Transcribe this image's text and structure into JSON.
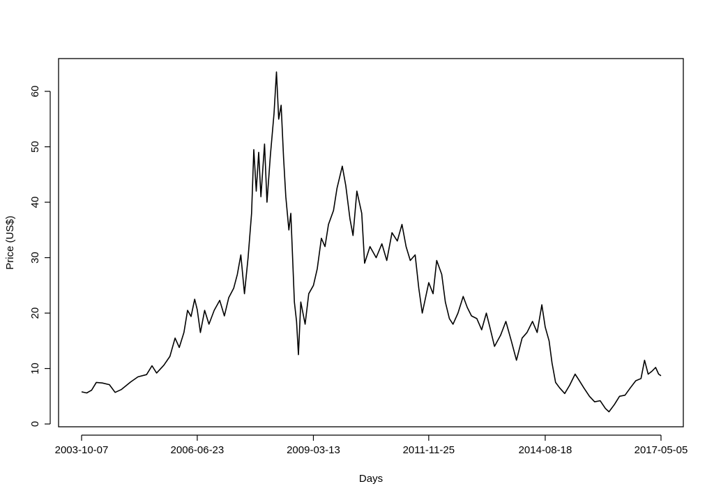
{
  "chart_data": {
    "type": "line",
    "title": "",
    "xlabel": "Days",
    "ylabel": "Price (US$)",
    "x_ticks": [
      "2003-10-07",
      "2006-06-23",
      "2009-03-13",
      "2011-11-25",
      "2014-08-18",
      "2017-05-05"
    ],
    "y_ticks": [
      0,
      10,
      20,
      30,
      40,
      50,
      60
    ],
    "xlim": [
      "2003-10-07",
      "2017-05-05"
    ],
    "ylim": [
      0,
      65
    ],
    "grid": false,
    "legend": "none",
    "line_color": "#000000",
    "series": [
      {
        "points": [
          [
            "2003-10-07",
            5.8
          ],
          [
            "2003-11-20",
            5.6
          ],
          [
            "2004-01-01",
            6.1
          ],
          [
            "2004-02-10",
            7.5
          ],
          [
            "2004-04-01",
            7.4
          ],
          [
            "2004-06-01",
            7.1
          ],
          [
            "2004-07-20",
            5.7
          ],
          [
            "2004-09-10",
            6.2
          ],
          [
            "2004-12-01",
            7.6
          ],
          [
            "2005-02-01",
            8.5
          ],
          [
            "2005-04-15",
            8.9
          ],
          [
            "2005-06-01",
            10.5
          ],
          [
            "2005-07-10",
            9.2
          ],
          [
            "2005-09-10",
            10.6
          ],
          [
            "2005-11-01",
            12.2
          ],
          [
            "2005-12-15",
            15.5
          ],
          [
            "2006-01-20",
            13.8
          ],
          [
            "2006-03-01",
            16.5
          ],
          [
            "2006-04-01",
            20.5
          ],
          [
            "2006-05-01",
            19.4
          ],
          [
            "2006-06-01",
            22.5
          ],
          [
            "2006-06-23",
            20.6
          ],
          [
            "2006-07-20",
            16.5
          ],
          [
            "2006-08-25",
            20.5
          ],
          [
            "2006-10-01",
            18.0
          ],
          [
            "2006-11-15",
            20.5
          ],
          [
            "2007-01-01",
            22.3
          ],
          [
            "2007-02-10",
            19.5
          ],
          [
            "2007-03-20",
            22.8
          ],
          [
            "2007-05-01",
            24.5
          ],
          [
            "2007-06-01",
            27.0
          ],
          [
            "2007-07-01",
            30.5
          ],
          [
            "2007-08-01",
            23.5
          ],
          [
            "2007-09-01",
            30.0
          ],
          [
            "2007-10-01",
            38.0
          ],
          [
            "2007-10-20",
            49.5
          ],
          [
            "2007-11-10",
            42.0
          ],
          [
            "2007-12-01",
            49.0
          ],
          [
            "2007-12-20",
            41.0
          ],
          [
            "2008-01-20",
            50.5
          ],
          [
            "2008-02-10",
            40.0
          ],
          [
            "2008-03-10",
            48.5
          ],
          [
            "2008-04-10",
            56.0
          ],
          [
            "2008-05-01",
            63.5
          ],
          [
            "2008-05-20",
            55.0
          ],
          [
            "2008-06-10",
            57.5
          ],
          [
            "2008-07-01",
            48.0
          ],
          [
            "2008-07-20",
            41.0
          ],
          [
            "2008-08-15",
            35.0
          ],
          [
            "2008-09-01",
            38.0
          ],
          [
            "2008-10-01",
            22.0
          ],
          [
            "2008-10-20",
            18.5
          ],
          [
            "2008-11-05",
            12.5
          ],
          [
            "2008-11-25",
            22.0
          ],
          [
            "2009-01-01",
            18.0
          ],
          [
            "2009-02-01",
            23.5
          ],
          [
            "2009-03-13",
            25.0
          ],
          [
            "2009-04-15",
            28.0
          ],
          [
            "2009-05-20",
            33.5
          ],
          [
            "2009-06-20",
            32.0
          ],
          [
            "2009-07-20",
            36.0
          ],
          [
            "2009-09-01",
            38.5
          ],
          [
            "2009-10-01",
            42.5
          ],
          [
            "2009-11-15",
            46.5
          ],
          [
            "2009-12-15",
            43.0
          ],
          [
            "2010-01-20",
            37.0
          ],
          [
            "2010-02-15",
            34.0
          ],
          [
            "2010-03-20",
            42.0
          ],
          [
            "2010-05-01",
            38.0
          ],
          [
            "2010-05-25",
            29.0
          ],
          [
            "2010-07-10",
            32.0
          ],
          [
            "2010-09-01",
            30.0
          ],
          [
            "2010-10-20",
            32.5
          ],
          [
            "2010-12-01",
            29.5
          ],
          [
            "2011-01-15",
            34.5
          ],
          [
            "2011-03-01",
            33.0
          ],
          [
            "2011-04-10",
            36.0
          ],
          [
            "2011-05-15",
            32.0
          ],
          [
            "2011-06-20",
            29.5
          ],
          [
            "2011-08-01",
            30.5
          ],
          [
            "2011-09-01",
            24.5
          ],
          [
            "2011-10-01",
            20.0
          ],
          [
            "2011-11-25",
            25.5
          ],
          [
            "2012-01-01",
            23.5
          ],
          [
            "2012-02-01",
            29.5
          ],
          [
            "2012-03-15",
            27.0
          ],
          [
            "2012-04-15",
            22.0
          ],
          [
            "2012-05-20",
            19.0
          ],
          [
            "2012-06-20",
            18.0
          ],
          [
            "2012-08-01",
            20.0
          ],
          [
            "2012-09-15",
            23.0
          ],
          [
            "2012-10-20",
            21.0
          ],
          [
            "2012-11-25",
            19.5
          ],
          [
            "2013-01-10",
            19.0
          ],
          [
            "2013-02-20",
            17.0
          ],
          [
            "2013-04-01",
            20.0
          ],
          [
            "2013-05-01",
            17.5
          ],
          [
            "2013-06-10",
            14.0
          ],
          [
            "2013-08-01",
            16.0
          ],
          [
            "2013-09-15",
            18.5
          ],
          [
            "2013-11-01",
            15.0
          ],
          [
            "2013-12-15",
            11.5
          ],
          [
            "2014-02-01",
            15.5
          ],
          [
            "2014-03-15",
            16.5
          ],
          [
            "2014-05-01",
            18.5
          ],
          [
            "2014-06-10",
            16.5
          ],
          [
            "2014-07-20",
            21.5
          ],
          [
            "2014-08-18",
            17.5
          ],
          [
            "2014-09-20",
            15.0
          ],
          [
            "2014-10-15",
            11.0
          ],
          [
            "2014-11-15",
            7.5
          ],
          [
            "2014-12-20",
            6.5
          ],
          [
            "2015-02-01",
            5.5
          ],
          [
            "2015-03-15",
            7.0
          ],
          [
            "2015-05-01",
            9.0
          ],
          [
            "2015-06-01",
            8.0
          ],
          [
            "2015-07-15",
            6.5
          ],
          [
            "2015-09-01",
            5.0
          ],
          [
            "2015-10-15",
            4.0
          ],
          [
            "2015-12-01",
            4.2
          ],
          [
            "2016-01-15",
            2.8
          ],
          [
            "2016-02-15",
            2.2
          ],
          [
            "2016-04-01",
            3.5
          ],
          [
            "2016-05-15",
            5.0
          ],
          [
            "2016-07-01",
            5.2
          ],
          [
            "2016-08-15",
            6.5
          ],
          [
            "2016-10-01",
            7.8
          ],
          [
            "2016-11-15",
            8.2
          ],
          [
            "2016-12-15",
            11.5
          ],
          [
            "2017-01-15",
            9.0
          ],
          [
            "2017-02-15",
            9.5
          ],
          [
            "2017-03-20",
            10.2
          ],
          [
            "2017-04-15",
            9.0
          ],
          [
            "2017-05-05",
            8.7
          ]
        ]
      }
    ]
  }
}
